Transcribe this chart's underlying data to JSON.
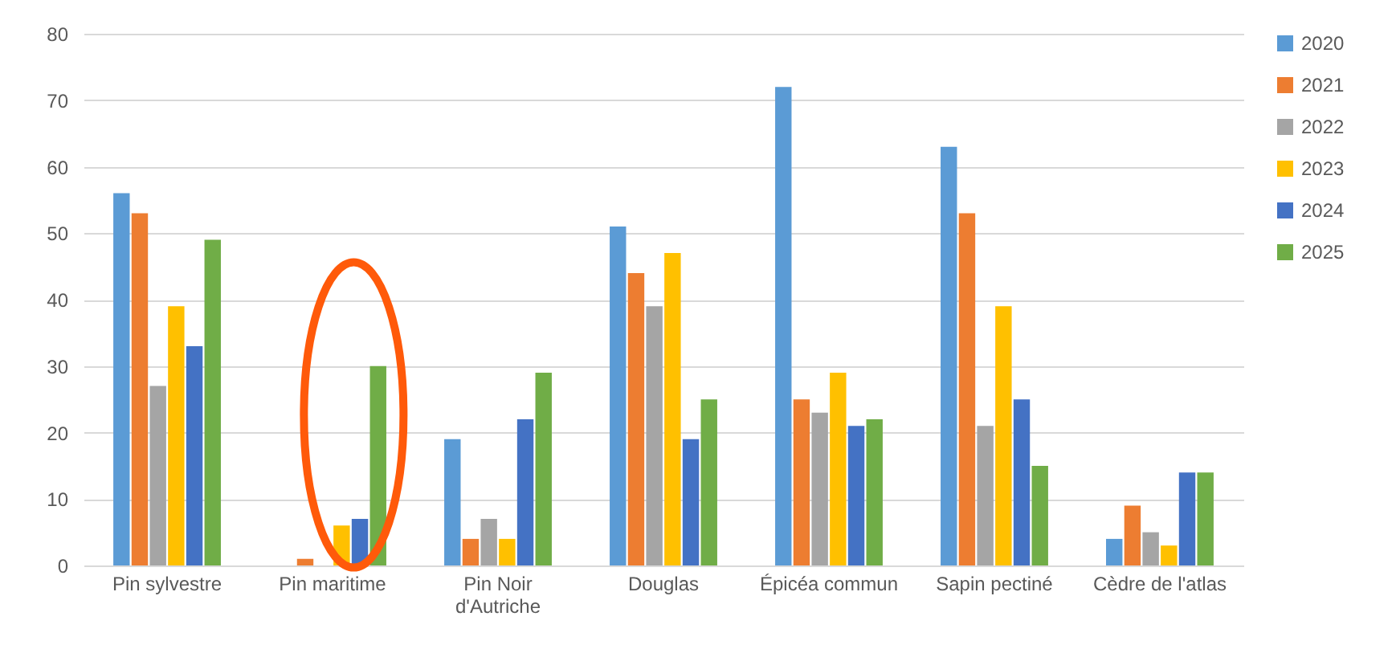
{
  "chart_data": {
    "type": "bar",
    "categories": [
      "Pin sylvestre",
      "Pin maritime",
      "Pin Noir d'Autriche",
      "Douglas",
      "Épicéa commun",
      "Sapin pectiné",
      "Cèdre de l'atlas"
    ],
    "series": [
      {
        "name": "2020",
        "color": "#5b9bd5",
        "values": [
          56,
          0,
          19,
          51,
          72,
          63,
          4
        ]
      },
      {
        "name": "2021",
        "color": "#ed7d31",
        "values": [
          53,
          1,
          4,
          44,
          25,
          53,
          9
        ]
      },
      {
        "name": "2022",
        "color": "#a5a5a5",
        "values": [
          27,
          0,
          7,
          39,
          23,
          21,
          5
        ]
      },
      {
        "name": "2023",
        "color": "#ffc000",
        "values": [
          39,
          6,
          4,
          47,
          29,
          39,
          3
        ]
      },
      {
        "name": "2024",
        "color": "#4472c4",
        "values": [
          33,
          7,
          22,
          19,
          21,
          25,
          14
        ]
      },
      {
        "name": "2025",
        "color": "#70ad47",
        "values": [
          49,
          30,
          29,
          25,
          22,
          15,
          14
        ]
      }
    ],
    "ylim": [
      0,
      80
    ],
    "yticks": [
      0,
      10,
      20,
      30,
      40,
      50,
      60,
      70,
      80
    ],
    "grid": "y",
    "legend": "right"
  }
}
